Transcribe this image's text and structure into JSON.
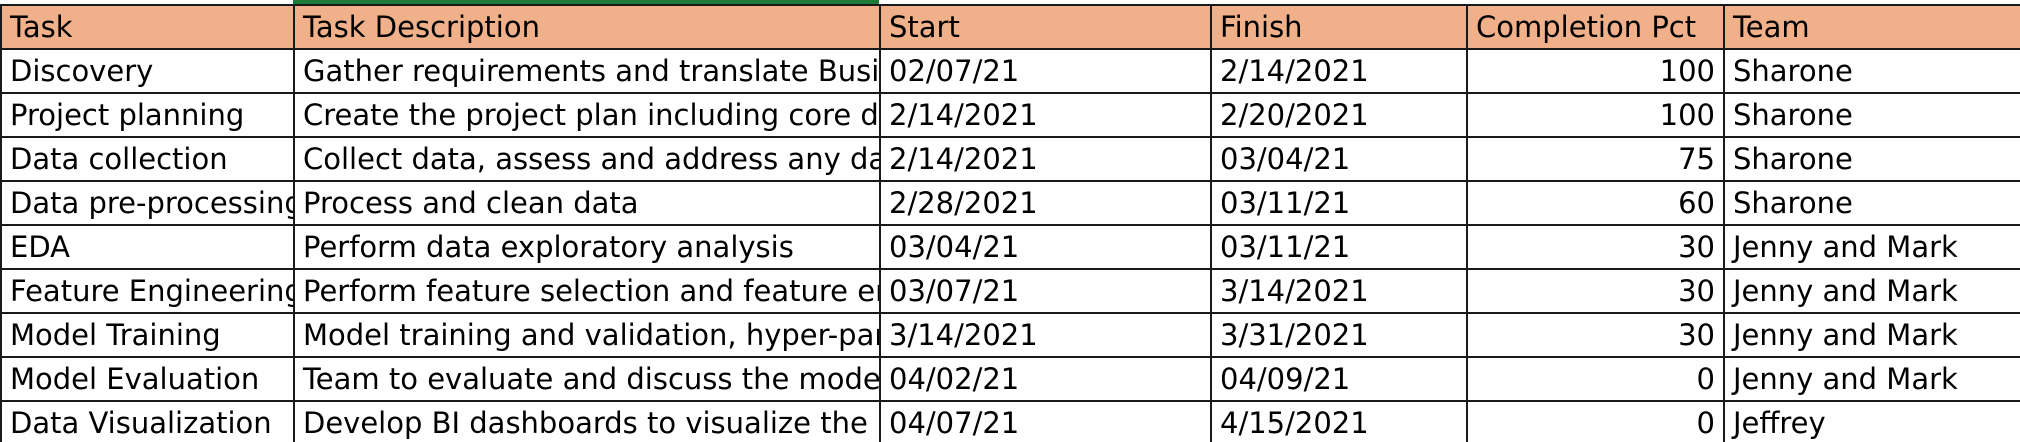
{
  "header": {
    "task": "Task",
    "description": "Task Description",
    "start": "Start",
    "finish": "Finish",
    "completion": "Completion Pct",
    "team": "Team"
  },
  "rows": [
    {
      "task": "Discovery",
      "description": "Gather requirements and translate Busine",
      "start": "02/07/21",
      "finish": "2/14/2021",
      "completion": "100",
      "team": "Sharone"
    },
    {
      "task": "Project planning",
      "description": "Create the project plan including core deliv",
      "start": "2/14/2021",
      "finish": "2/20/2021",
      "completion": "100",
      "team": "Sharone"
    },
    {
      "task": "Data collection",
      "description": "Collect data, assess and address any data g",
      "start": "2/14/2021",
      "finish": "03/04/21",
      "completion": "75",
      "team": "Sharone"
    },
    {
      "task": "Data pre-processing",
      "description": "Process and clean data",
      "start": "2/28/2021",
      "finish": "03/11/21",
      "completion": "60",
      "team": "Sharone"
    },
    {
      "task": "EDA",
      "description": "Perform data exploratory analysis",
      "start": "03/04/21",
      "finish": "03/11/21",
      "completion": "30",
      "team": "Jenny and Mark"
    },
    {
      "task": "Feature Engineering",
      "description": "Perform feature selection and feature eng",
      "start": "03/07/21",
      "finish": "3/14/2021",
      "completion": "30",
      "team": "Jenny and Mark"
    },
    {
      "task": "Model Training",
      "description": "Model training and validation, hyper-para",
      "start": "3/14/2021",
      "finish": "3/31/2021",
      "completion": "30",
      "team": "Jenny and Mark"
    },
    {
      "task": "Model Evaluation",
      "description": "Team to evaluate and discuss the model p",
      "start": "04/02/21",
      "finish": "04/09/21",
      "completion": "0",
      "team": "Jenny and Mark"
    },
    {
      "task": "Data Visualization",
      "description": "Develop BI dashboards to visualize the mo",
      "start": "04/07/21",
      "finish": "4/15/2021",
      "completion": "0",
      "team": "Jeffrey"
    }
  ],
  "colors": {
    "header_fill": "#efb08a",
    "grid_line": "#1a1a1a",
    "selection_accent": "#1f7a3a"
  }
}
